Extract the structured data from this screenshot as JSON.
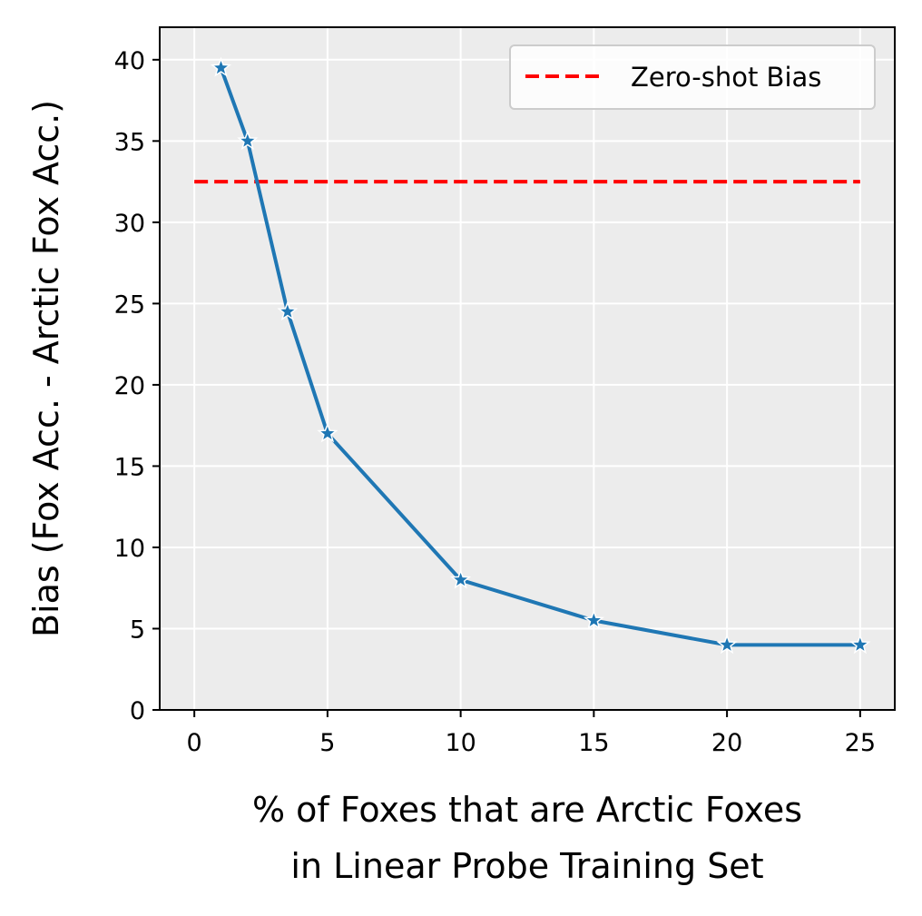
{
  "chart_data": {
    "type": "line",
    "title": "",
    "xlabel_lines": [
      "% of Foxes that are Arctic Foxes",
      "in Linear Probe Training Set"
    ],
    "ylabel": "Bias (Fox Acc. - Arctic Fox Acc.)",
    "xlim": [
      -1.3,
      26.3
    ],
    "ylim": [
      0,
      42
    ],
    "xticks": [
      0,
      5,
      10,
      15,
      20,
      25
    ],
    "yticks": [
      0,
      5,
      10,
      15,
      20,
      25,
      30,
      35,
      40
    ],
    "grid": true,
    "legend_position": "top-right",
    "series": [
      {
        "kind": "line",
        "color": "#1f77b4",
        "marker": "star",
        "x": [
          1,
          2,
          3.5,
          5,
          10,
          15,
          20,
          25
        ],
        "y": [
          39.5,
          35,
          24.5,
          17,
          8,
          5.5,
          4,
          4
        ]
      },
      {
        "kind": "reference",
        "name": "Zero-shot Bias",
        "color": "#ff0000",
        "style": "dashed",
        "x": [
          0,
          25
        ],
        "y": [
          32.5,
          32.5
        ]
      }
    ]
  }
}
